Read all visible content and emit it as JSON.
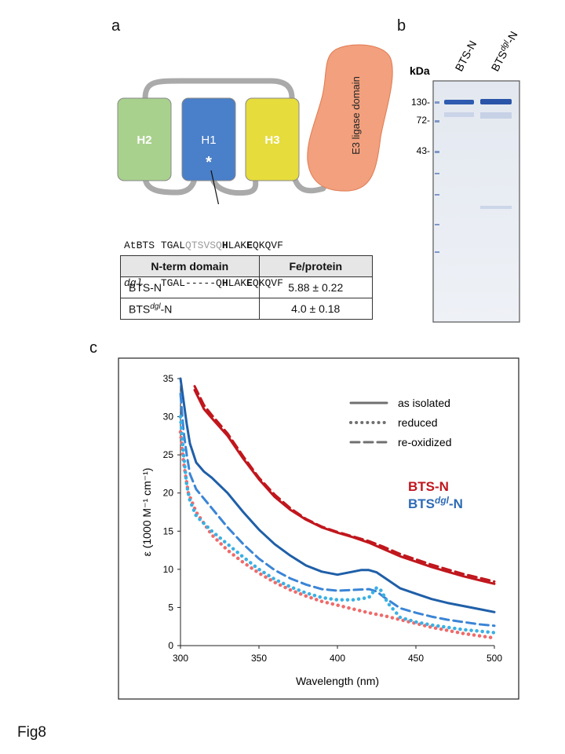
{
  "panel_a": {
    "label": "a",
    "domains": {
      "h2": "H2",
      "h1": "H1",
      "h3": "H3",
      "star": "*",
      "e3": "E3 ligase domain"
    },
    "colors": {
      "h2": "#a9d18e",
      "h1": "#4a7fc9",
      "h3": "#e6dc3c",
      "e3": "#f2a07e",
      "linker": "#aaaaaa"
    },
    "sequences": [
      {
        "name": "AtBTS",
        "segments": [
          {
            "text": "TGAL",
            "style": "normal"
          },
          {
            "text": "QTSVSQ",
            "style": "grey"
          },
          {
            "text": "H",
            "style": "bold"
          },
          {
            "text": "LAK",
            "style": "normal"
          },
          {
            "text": "E",
            "style": "bold"
          },
          {
            "text": "QKQVF",
            "style": "normal"
          }
        ]
      },
      {
        "name": "dgl",
        "segments": [
          {
            "text": "TGAL-----Q",
            "style": "normal"
          },
          {
            "text": "H",
            "style": "bold"
          },
          {
            "text": "LAK",
            "style": "normal"
          },
          {
            "text": "E",
            "style": "bold"
          },
          {
            "text": "QKQVF",
            "style": "normal"
          }
        ]
      }
    ],
    "table": {
      "headers": [
        "N-term domain",
        "Fe/protein"
      ],
      "rows": [
        {
          "name_main": "BTS-N",
          "name_sup": "",
          "name_suffix": "",
          "value": "5.88 ± 0.22"
        },
        {
          "name_main": "BTS",
          "name_sup": "dgl",
          "name_suffix": "-N",
          "value": "4.0 ± 0.18"
        }
      ]
    }
  },
  "panel_b": {
    "label": "b",
    "kda_label": "kDa",
    "lanes": [
      {
        "main": "BTS-N",
        "sup": "",
        "suffix": ""
      },
      {
        "main": "BTS",
        "sup": "dgl",
        "suffix": "-N"
      }
    ],
    "markers": [
      "130-",
      "72-",
      "43-"
    ]
  },
  "panel_c": {
    "label": "c"
  },
  "caption": "Fig8",
  "chart_data": {
    "type": "line",
    "xlabel": "Wavelength (nm)",
    "ylabel": "ε (1000 M⁻¹ cm⁻¹)",
    "xlim": [
      300,
      500
    ],
    "ylim": [
      0,
      35
    ],
    "xticks": [
      300,
      350,
      400,
      450,
      500
    ],
    "yticks": [
      0,
      5,
      10,
      15,
      20,
      25,
      30,
      35
    ],
    "grid": false,
    "legend_styles": [
      {
        "label": "as isolated",
        "dash": "solid"
      },
      {
        "label": "reduced",
        "dash": "dotted"
      },
      {
        "label": "re-oxidized",
        "dash": "dashed"
      }
    ],
    "legend_proteins": [
      {
        "main": "BTS-N",
        "sup": "",
        "suffix": "",
        "color": "#c0171d"
      },
      {
        "main": "BTS",
        "sup": "dgl",
        "suffix": "-N",
        "color": "#2e6bb5"
      }
    ],
    "series": [
      {
        "protein": "BTS-N",
        "state": "as isolated",
        "color": "#c0171d",
        "dash": "solid",
        "x": [
          309,
          315,
          320,
          330,
          340,
          350,
          360,
          370,
          380,
          390,
          400,
          410,
          420,
          430,
          440,
          450,
          460,
          470,
          480,
          490,
          500
        ],
        "y": [
          33.5,
          31,
          29.8,
          27.5,
          24.5,
          21.8,
          19.5,
          17.8,
          16.5,
          15.5,
          14.8,
          14.2,
          13.5,
          12.6,
          11.7,
          11.0,
          10.3,
          9.7,
          9.1,
          8.6,
          8.1
        ]
      },
      {
        "protein": "BTS-N",
        "state": "re-oxidized",
        "color": "#c0171d",
        "dash": "dashed",
        "x": [
          309,
          315,
          320,
          330,
          340,
          350,
          360,
          370,
          380,
          390,
          400,
          410,
          420,
          430,
          440,
          450,
          460,
          470,
          480,
          490,
          500
        ],
        "y": [
          34,
          31.5,
          30.2,
          27.8,
          24.8,
          22,
          19.8,
          18,
          16.6,
          15.6,
          14.9,
          14.3,
          13.7,
          12.9,
          12.0,
          11.3,
          10.6,
          10.0,
          9.4,
          8.9,
          8.4
        ]
      },
      {
        "protein": "BTS-N",
        "state": "reduced",
        "color": "#ef6b6b",
        "dash": "dotted",
        "x": [
          300,
          302,
          305,
          310,
          320,
          330,
          340,
          350,
          360,
          370,
          380,
          390,
          400,
          410,
          420,
          430,
          440,
          450,
          460,
          470,
          480,
          490,
          500
        ],
        "y": [
          28,
          24,
          20,
          17.5,
          14.5,
          12.5,
          10.9,
          9.5,
          8.3,
          7.3,
          6.5,
          5.8,
          5.3,
          4.8,
          4.3,
          3.9,
          3.4,
          2.9,
          2.4,
          2.0,
          1.6,
          1.3,
          1.0
        ]
      },
      {
        "protein": "BTSdgl-N",
        "state": "as isolated",
        "color": "#1f5fa8",
        "dash": "solid",
        "x": [
          300,
          302,
          304,
          306,
          310,
          315,
          320,
          330,
          340,
          350,
          360,
          370,
          380,
          390,
          400,
          410,
          415,
          420,
          425,
          430,
          440,
          450,
          460,
          470,
          480,
          490,
          500
        ],
        "y": [
          35,
          32,
          29,
          26.5,
          24,
          22.8,
          22,
          20,
          17.5,
          15.2,
          13.3,
          11.8,
          10.5,
          9.7,
          9.3,
          9.7,
          9.9,
          9.9,
          9.6,
          8.9,
          7.5,
          6.8,
          6.1,
          5.6,
          5.2,
          4.8,
          4.4
        ]
      },
      {
        "protein": "BTSdgl-N",
        "state": "re-oxidized",
        "color": "#3a85d6",
        "dash": "dashed",
        "x": [
          300,
          302,
          304,
          306,
          310,
          320,
          330,
          340,
          350,
          360,
          370,
          380,
          390,
          400,
          410,
          420,
          425,
          430,
          440,
          450,
          460,
          470,
          480,
          490,
          500
        ],
        "y": [
          33,
          28,
          25,
          22.5,
          20.5,
          18,
          15.5,
          13.3,
          11.4,
          9.9,
          8.8,
          8.0,
          7.4,
          7.2,
          7.3,
          7.4,
          7.1,
          6.3,
          4.9,
          4.3,
          3.8,
          3.4,
          3.1,
          2.8,
          2.6
        ]
      },
      {
        "protein": "BTSdgl-N",
        "state": "reduced",
        "color": "#3bb0e3",
        "dash": "dotted",
        "x": [
          300,
          302,
          304,
          306,
          310,
          320,
          330,
          340,
          350,
          360,
          370,
          380,
          390,
          400,
          410,
          420,
          425,
          428,
          432,
          440,
          450,
          460,
          470,
          480,
          490,
          500
        ],
        "y": [
          30,
          25,
          21,
          19,
          17,
          15,
          13.3,
          11.6,
          10.0,
          8.7,
          7.7,
          6.9,
          6.3,
          6.0,
          6.0,
          6.3,
          7.6,
          7.2,
          5.6,
          3.7,
          3.1,
          2.7,
          2.4,
          2.1,
          1.9,
          1.7
        ]
      }
    ]
  }
}
